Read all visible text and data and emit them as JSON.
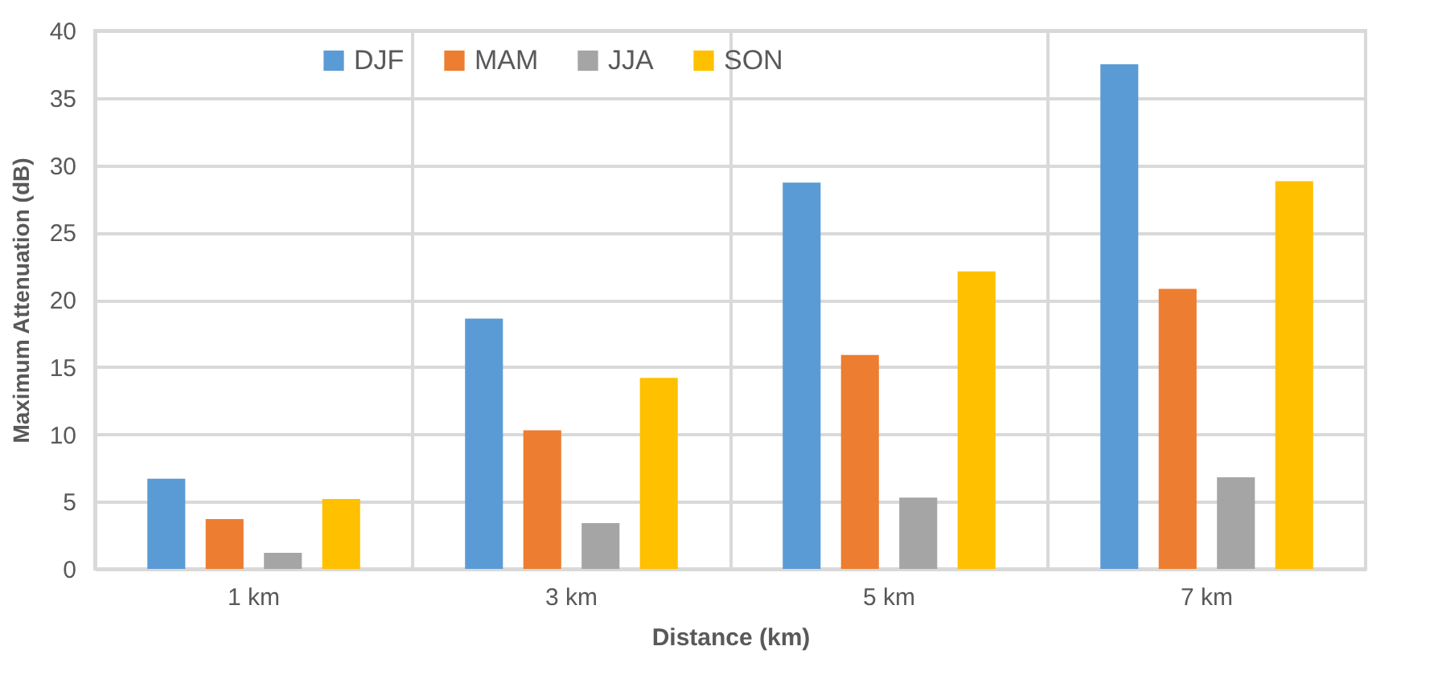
{
  "chart_data": {
    "type": "bar",
    "xlabel": "Distance (km)",
    "ylabel": "Maximum Attenuation (dB)",
    "categories": [
      "1 km",
      "3 km",
      "5 km",
      "7 km"
    ],
    "series": [
      {
        "name": "DJF",
        "color": "#5b9bd5",
        "values": [
          6.7,
          18.6,
          28.7,
          37.5
        ]
      },
      {
        "name": "MAM",
        "color": "#ed7d31",
        "values": [
          3.7,
          10.3,
          15.9,
          20.8
        ]
      },
      {
        "name": "JJA",
        "color": "#a5a5a5",
        "values": [
          1.2,
          3.4,
          5.3,
          6.8
        ]
      },
      {
        "name": "SON",
        "color": "#ffc000",
        "values": [
          5.2,
          14.2,
          22.1,
          28.8
        ]
      }
    ],
    "ylim": [
      0,
      40
    ],
    "yticks": [
      0,
      5,
      10,
      15,
      20,
      25,
      30,
      35,
      40
    ],
    "grid": true,
    "legend": "top"
  }
}
